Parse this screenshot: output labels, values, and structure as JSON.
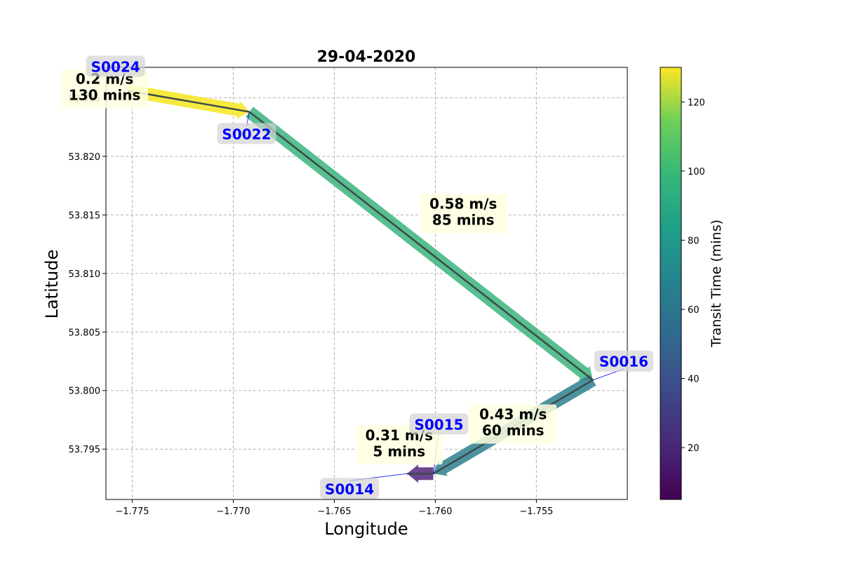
{
  "chart_data": {
    "type": "line",
    "title": "29-04-2020",
    "xlabel": "Longitude",
    "ylabel": "Latitude",
    "xlim": [
      -1.7763,
      -1.7505
    ],
    "ylim": [
      53.7907,
      53.8276
    ],
    "xticks": [
      -1.775,
      -1.77,
      -1.765,
      -1.76,
      -1.755
    ],
    "xtick_labels": [
      "−1.775",
      "−1.770",
      "−1.765",
      "−1.760",
      "−1.755"
    ],
    "yticks": [
      53.795,
      53.8,
      53.805,
      53.81,
      53.815,
      53.82,
      53.825
    ],
    "ytick_labels": [
      "53.795",
      "53.800",
      "53.805",
      "53.810",
      "53.815",
      "53.820",
      "53.825"
    ],
    "grid": true,
    "colorbar": {
      "label": "Transit Time (mins)",
      "range": [
        5,
        130
      ],
      "ticks": [
        20,
        40,
        60,
        80,
        100,
        120
      ],
      "tick_labels": [
        "20",
        "40",
        "60",
        "80",
        "100",
        "120"
      ],
      "colormap": "viridis"
    },
    "stations": [
      {
        "name": "S0024",
        "lon": -1.7752,
        "lat": 53.8256
      },
      {
        "name": "S0022",
        "lon": -1.7692,
        "lat": 53.8238
      },
      {
        "name": "S0016",
        "lon": -1.7522,
        "lat": 53.8009
      },
      {
        "name": "S0015",
        "lon": -1.7601,
        "lat": 53.7929
      },
      {
        "name": "S0014",
        "lon": -1.7614,
        "lat": 53.7929
      }
    ],
    "segments": [
      {
        "from": "S0024",
        "to": "S0022",
        "speed": "0.2 m/s",
        "transit": "130 mins",
        "transit_value": 130,
        "color": "#f5e61e"
      },
      {
        "from": "S0022",
        "to": "S0016",
        "speed": "0.58 m/s",
        "transit": "85 mins",
        "transit_value": 85,
        "color": "#3bb47c"
      },
      {
        "from": "S0016",
        "to": "S0015",
        "speed": "0.43 m/s",
        "transit": "60 mins",
        "transit_value": 60,
        "color": "#2e7f8e"
      },
      {
        "from": "S0015",
        "to": "S0014",
        "speed": "0.31 m/s",
        "transit": "5 mins",
        "transit_value": 5,
        "color": "#54257a"
      }
    ],
    "track_color": "#3a4a4a"
  }
}
